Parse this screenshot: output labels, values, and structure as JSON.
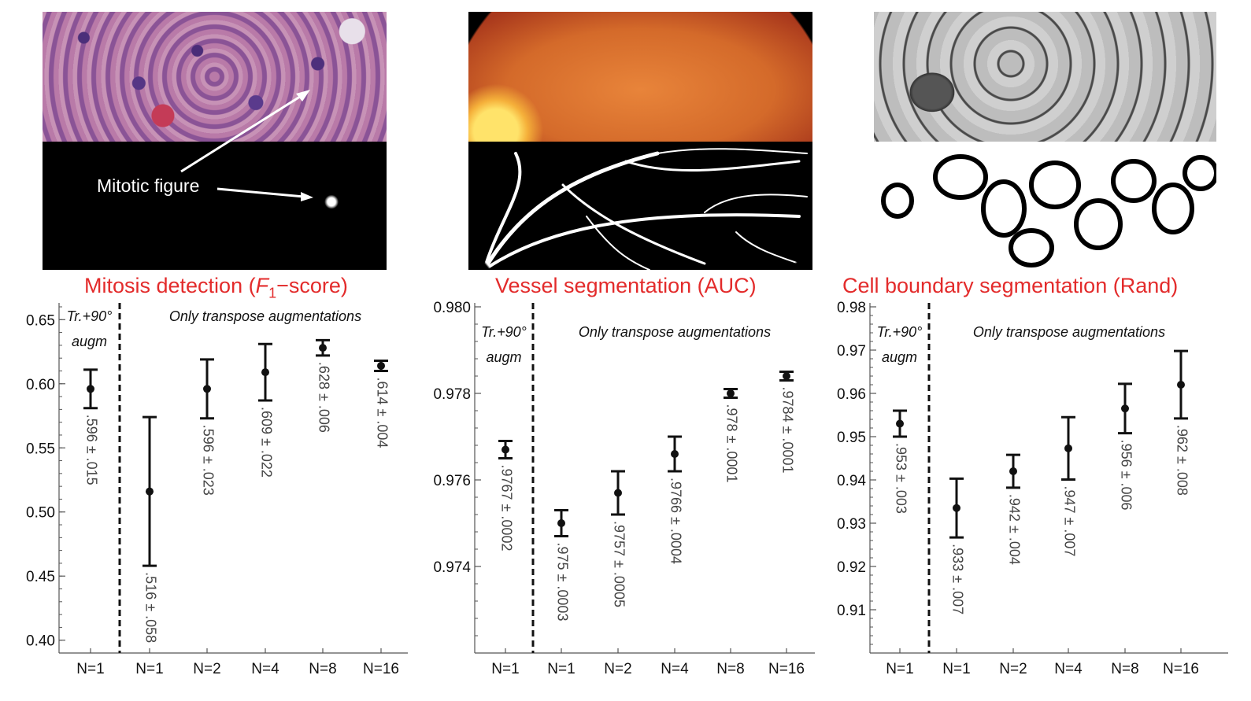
{
  "panels": [
    {
      "id": "mitosis",
      "title_main": "Mitosis detection (",
      "title_var": "F",
      "title_sub": "1",
      "title_end": "−score)",
      "annotation": "Mitotic figure",
      "image_top_desc": "H&E histology",
      "image_bottom_desc": "Detection map",
      "colors": {
        "top_a": "#c97aa8",
        "top_b": "#5b3d8a",
        "bottom": "#000000"
      }
    },
    {
      "id": "vessel",
      "title_main": "Vessel segmentation (AUC)",
      "colors": {
        "top_a": "#e8843a",
        "top_b": "#b2401c",
        "bottom": "#000000"
      }
    },
    {
      "id": "cell",
      "title_main": "Cell boundary segmentation (Rand)",
      "colors": {
        "top_a": "#c8c8c8",
        "top_b": "#5a5a5a",
        "bottom": "#ffffff"
      }
    }
  ],
  "chart_data": [
    {
      "type": "scatter",
      "title": "Mitosis detection (F1−score)",
      "categories": [
        "N=1",
        "N=1",
        "N=2",
        "N=4",
        "N=8",
        "N=16"
      ],
      "values": [
        0.596,
        0.516,
        0.596,
        0.609,
        0.628,
        0.614
      ],
      "errors": [
        0.015,
        0.058,
        0.023,
        0.022,
        0.006,
        0.004
      ],
      "value_labels": [
        ".596 ± .015",
        ".516 ± .058",
        ".596 ± .023",
        ".609 ± .022",
        ".628 ± .006",
        ".614 ± .004"
      ],
      "ylim": [
        0.39,
        0.66
      ],
      "yticks": [
        0.4,
        0.45,
        0.5,
        0.55,
        0.6,
        0.65
      ],
      "ytick_labels": [
        "0.40",
        "0.45",
        "0.50",
        "0.55",
        "0.60",
        "0.65"
      ],
      "group_left_label": [
        "Tr.+90°",
        "augm"
      ],
      "group_right_label": "Only transpose augmentations",
      "error_bars": true
    },
    {
      "type": "scatter",
      "title": "Vessel segmentation (AUC)",
      "categories": [
        "N=1",
        "N=1",
        "N=2",
        "N=4",
        "N=8",
        "N=16"
      ],
      "values": [
        0.9767,
        0.975,
        0.9757,
        0.9766,
        0.978,
        0.9784
      ],
      "errors": [
        0.0002,
        0.0003,
        0.0005,
        0.0004,
        0.0001,
        0.0001
      ],
      "value_labels": [
        ".9767 ± .0002",
        ".975 ± .0003",
        ".9757 ± .0005",
        ".9766 ± .0004",
        ".978 ± .0001",
        ".9784 ± .0001"
      ],
      "ylim": [
        0.972,
        0.98
      ],
      "yticks": [
        0.974,
        0.976,
        0.978,
        0.98
      ],
      "ytick_labels": [
        "0.974",
        "0.976",
        "0.978",
        "0.980"
      ],
      "group_left_label": [
        "Tr.+90°",
        "augm"
      ],
      "group_right_label": "Only transpose augmentations",
      "error_bars": true
    },
    {
      "type": "scatter",
      "title": "Cell boundary segmentation (Rand)",
      "categories": [
        "N=1",
        "N=1",
        "N=2",
        "N=4",
        "N=8",
        "N=16"
      ],
      "values": [
        0.953,
        0.9335,
        0.942,
        0.9473,
        0.9565,
        0.962
      ],
      "errors": [
        0.003,
        0.0068,
        0.0038,
        0.0072,
        0.0057,
        0.0078
      ],
      "value_labels": [
        ".953 ± .003",
        ".933 ± .007",
        ".942 ± .004",
        ".947 ± .007",
        ".956 ± .006",
        ".962 ± .008"
      ],
      "ylim": [
        0.9,
        0.98
      ],
      "yticks": [
        0.91,
        0.92,
        0.93,
        0.94,
        0.95,
        0.96,
        0.97,
        0.98
      ],
      "ytick_labels": [
        "0.91",
        "0.92",
        "0.93",
        "0.94",
        "0.95",
        "0.96",
        "0.97",
        "0.98"
      ],
      "group_left_label": [
        "Tr.+90°",
        "augm"
      ],
      "group_right_label": "Only transpose augmentations",
      "error_bars": true
    }
  ]
}
